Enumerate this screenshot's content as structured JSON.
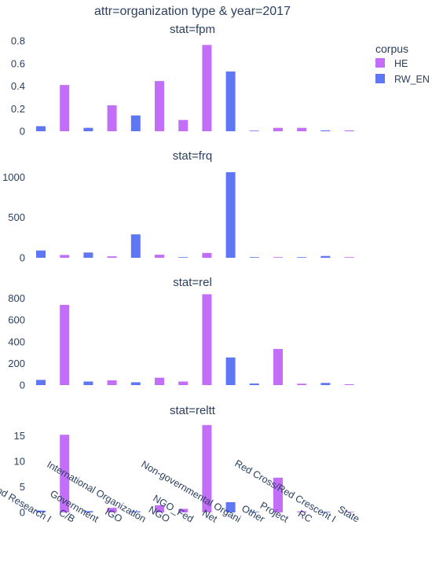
{
  "title": "attr=organization type & year=2017",
  "legend": {
    "title": "corpus",
    "placement": "top-right",
    "items": [
      {
        "name": "HE",
        "color": "#c36ef9"
      },
      {
        "name": "RW_EN",
        "color": "#5f76f5"
      }
    ]
  },
  "chart_data": {
    "type": "bar",
    "categories": [
      "Academic and Research I",
      "C/B",
      "Government",
      "IGO",
      "International Organization",
      "NGO",
      "NGO_Fed",
      "Net",
      "Non-governmental Organi",
      "Other",
      "Project",
      "RC",
      "Red Cross/Red Crescent I",
      "State"
    ],
    "x_tick_labels": [
      "Academic and Research I",
      "C/B",
      "Government",
      "IGO",
      "International Organization",
      "NGO",
      "NGO_Fed",
      "Net",
      "Non-governmental Organi",
      "Other",
      "Project",
      "RC",
      "Red Cross/Red Crescent I",
      "State"
    ],
    "bar_positions": [
      0,
      1,
      2,
      3,
      4,
      5,
      6,
      7,
      8,
      9,
      10,
      11,
      12,
      13
    ],
    "grid": false,
    "panels": [
      {
        "title": "stat=fpm",
        "ylim": [
          0,
          0.85
        ],
        "yticks": [
          0,
          0.2,
          0.4,
          0.6,
          0.8
        ],
        "ytick_labels": [
          "0",
          "0.2",
          "0.4",
          "0.6",
          "0.8"
        ],
        "series": [
          {
            "name": "RW_EN",
            "values": [
              0.045,
              0,
              0.03,
              0,
              0.14,
              0,
              0,
              0,
              0.53,
              0.003,
              0,
              0,
              0.008,
              0
            ]
          },
          {
            "name": "HE",
            "values": [
              0,
              0.41,
              0,
              0.23,
              0,
              0.445,
              0.1,
              0.765,
              0,
              0,
              0.03,
              0.03,
              0,
              0.008
            ]
          }
        ]
      },
      {
        "title": "stat=frq",
        "ylim": [
          0,
          1100
        ],
        "yticks": [
          0,
          500,
          1000
        ],
        "ytick_labels": [
          "0",
          "500",
          "1000"
        ],
        "series": [
          {
            "name": "RW_EN",
            "values": [
              90,
              0,
              65,
              0,
              290,
              0,
              5,
              0,
              1060,
              3,
              0,
              3,
              22,
              0
            ]
          },
          {
            "name": "HE",
            "values": [
              0,
              35,
              0,
              18,
              0,
              38,
              0,
              60,
              0,
              0,
              3,
              0,
              0,
              3
            ]
          }
        ]
      },
      {
        "title": "stat=rel",
        "ylim": [
          0,
          870
        ],
        "yticks": [
          0,
          200,
          400,
          600,
          800
        ],
        "ytick_labels": [
          "0",
          "200",
          "400",
          "600",
          "800"
        ],
        "series": [
          {
            "name": "RW_EN",
            "values": [
              48,
              0,
              33,
              0,
              26,
              0,
              0,
              0,
              255,
              15,
              0,
              0,
              20,
              0
            ]
          },
          {
            "name": "HE",
            "values": [
              0,
              740,
              0,
              44,
              0,
              68,
              33,
              838,
              0,
              0,
              333,
              13,
              0,
              8
            ]
          }
        ]
      },
      {
        "title": "stat=reltt",
        "ylim": [
          0,
          18
        ],
        "yticks": [
          0,
          5,
          10,
          15
        ],
        "ytick_labels": [
          "0",
          "5",
          "10",
          "15"
        ],
        "series": [
          {
            "name": "RW_EN",
            "values": [
              0.35,
              0,
              0.25,
              0,
              0.2,
              0,
              0,
              0,
              2.0,
              0.1,
              0,
              0,
              0.1,
              0
            ]
          },
          {
            "name": "HE",
            "values": [
              0,
              15.2,
              0,
              0.9,
              0,
              1.4,
              0.7,
              17.1,
              0,
              0,
              6.8,
              0.2,
              0,
              0.1
            ]
          }
        ]
      }
    ]
  }
}
